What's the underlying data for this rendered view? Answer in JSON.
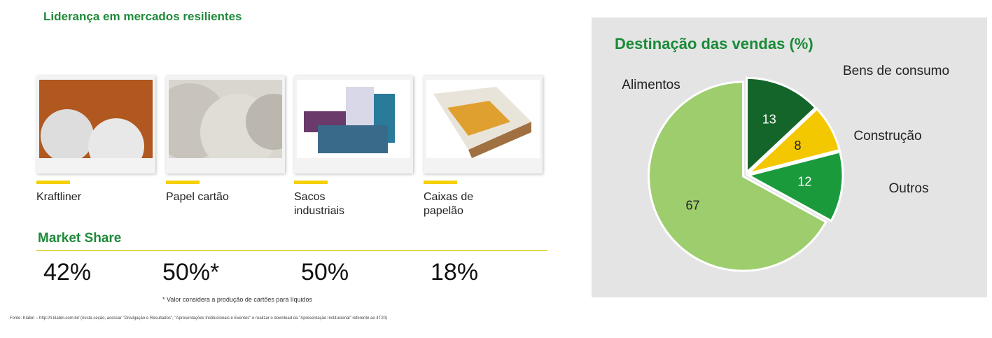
{
  "header": {
    "title": "Liderança em mercados resilientes"
  },
  "products": [
    {
      "label": "Kraftliner",
      "share": "42%"
    },
    {
      "label": "Papel cartão",
      "share": "50%*"
    },
    {
      "label": "Sacos industriais",
      "share": "50%"
    },
    {
      "label": "Caixas de papelão",
      "share": "18%"
    }
  ],
  "market_share_title": "Market Share",
  "footnote": "* Valor considera a produção de cartões para líquidos",
  "source": "Fonte: Klabin – http://ri.klabin.com.br/ (nesta seção, acessar \"Divulgação e Resultados\", \"Apresentações Institucionais e Eventos\" e realizar o download da \"Apresentação Institucional\" referente ao 4T20)",
  "chart_data": {
    "type": "pie",
    "title": "Destinação das vendas (%)",
    "categories": [
      "Bens de consumo",
      "Construção",
      "Outros",
      "Alimentos"
    ],
    "values": [
      13,
      8,
      12,
      67
    ],
    "colors": [
      "#14652a",
      "#f4c800",
      "#1b9a3c",
      "#9dcd6c"
    ]
  }
}
